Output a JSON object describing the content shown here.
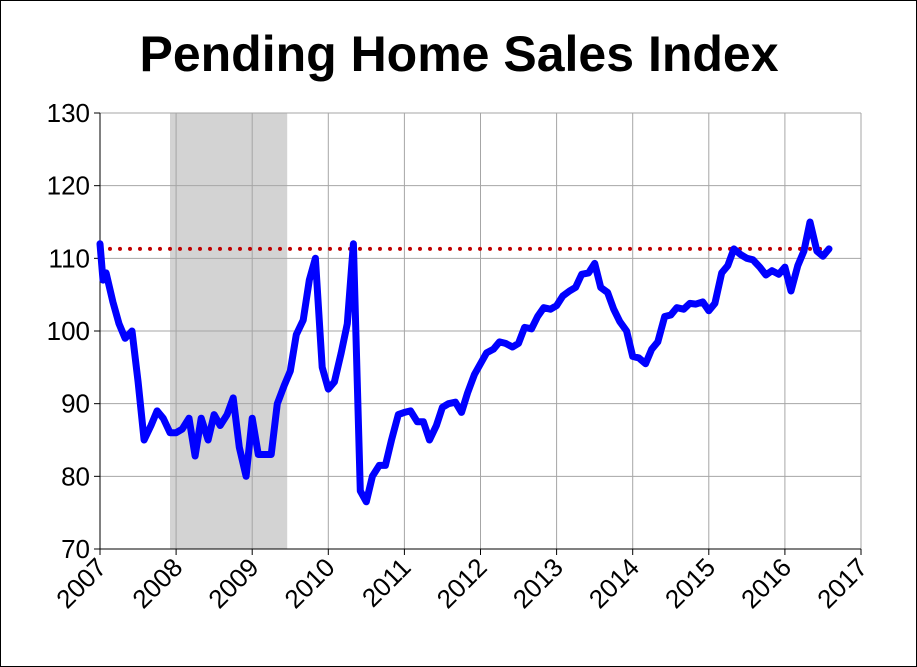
{
  "chart_data": {
    "type": "line",
    "title": "Pending Home Sales Index",
    "xlabel": "",
    "ylabel": "",
    "xlim": [
      2007,
      2017
    ],
    "ylim": [
      70,
      130
    ],
    "x_ticks": [
      2007,
      2008,
      2009,
      2010,
      2011,
      2012,
      2013,
      2014,
      2015,
      2016,
      2017
    ],
    "x_tick_labels": [
      "2007",
      "2008",
      "2009",
      "2010",
      "2011",
      "2012",
      "2013",
      "2014",
      "2015",
      "2016",
      "2017"
    ],
    "y_ticks": [
      70,
      80,
      90,
      100,
      110,
      120,
      130
    ],
    "y_tick_labels": [
      "70",
      "80",
      "90",
      "100",
      "110",
      "120",
      "130"
    ],
    "grid": true,
    "legend": "none",
    "shaded_period": {
      "start": 2007.92,
      "end": 2009.46,
      "color": "#d3d3d3"
    },
    "reference_line": {
      "value": 111.3,
      "color": "#c00000",
      "style": "dotted"
    },
    "series": [
      {
        "color": "#0000ff",
        "points": [
          [
            2007.0,
            112.0
          ],
          [
            2007.04,
            107.0
          ],
          [
            2007.08,
            108.0
          ],
          [
            2007.17,
            104.0
          ],
          [
            2007.25,
            101.0
          ],
          [
            2007.33,
            99.0
          ],
          [
            2007.42,
            100.0
          ],
          [
            2007.5,
            93.0
          ],
          [
            2007.58,
            85.0
          ],
          [
            2007.67,
            87.0
          ],
          [
            2007.75,
            89.0
          ],
          [
            2007.83,
            88.0
          ],
          [
            2007.92,
            86.0
          ],
          [
            2008.0,
            86.0
          ],
          [
            2008.08,
            86.5
          ],
          [
            2008.17,
            88.0
          ],
          [
            2008.25,
            82.8
          ],
          [
            2008.33,
            88.0
          ],
          [
            2008.42,
            85.0
          ],
          [
            2008.5,
            88.5
          ],
          [
            2008.58,
            87.0
          ],
          [
            2008.67,
            88.5
          ],
          [
            2008.75,
            90.8
          ],
          [
            2008.83,
            84.0
          ],
          [
            2008.92,
            80.0
          ],
          [
            2009.0,
            88.0
          ],
          [
            2009.08,
            83.0
          ],
          [
            2009.17,
            83.0
          ],
          [
            2009.25,
            83.0
          ],
          [
            2009.33,
            90.0
          ],
          [
            2009.42,
            92.5
          ],
          [
            2009.5,
            94.5
          ],
          [
            2009.58,
            99.5
          ],
          [
            2009.67,
            101.5
          ],
          [
            2009.75,
            107.0
          ],
          [
            2009.83,
            110.0
          ],
          [
            2009.92,
            95.0
          ],
          [
            2010.0,
            92.0
          ],
          [
            2010.08,
            93.0
          ],
          [
            2010.17,
            97.0
          ],
          [
            2010.25,
            101.0
          ],
          [
            2010.33,
            112.0
          ],
          [
            2010.42,
            78.0
          ],
          [
            2010.5,
            76.5
          ],
          [
            2010.58,
            80.0
          ],
          [
            2010.67,
            81.5
          ],
          [
            2010.75,
            81.5
          ],
          [
            2010.83,
            85.0
          ],
          [
            2010.92,
            88.5
          ],
          [
            2011.0,
            88.8
          ],
          [
            2011.08,
            89.0
          ],
          [
            2011.17,
            87.5
          ],
          [
            2011.25,
            87.5
          ],
          [
            2011.33,
            85.0
          ],
          [
            2011.42,
            87.0
          ],
          [
            2011.5,
            89.5
          ],
          [
            2011.58,
            90.0
          ],
          [
            2011.67,
            90.2
          ],
          [
            2011.75,
            88.8
          ],
          [
            2011.83,
            91.5
          ],
          [
            2011.92,
            94.0
          ],
          [
            2012.0,
            95.5
          ],
          [
            2012.08,
            97.0
          ],
          [
            2012.17,
            97.5
          ],
          [
            2012.25,
            98.5
          ],
          [
            2012.33,
            98.3
          ],
          [
            2012.42,
            97.8
          ],
          [
            2012.5,
            98.3
          ],
          [
            2012.58,
            100.5
          ],
          [
            2012.67,
            100.3
          ],
          [
            2012.75,
            102.0
          ],
          [
            2012.83,
            103.2
          ],
          [
            2012.92,
            103.0
          ],
          [
            2013.0,
            103.5
          ],
          [
            2013.08,
            104.8
          ],
          [
            2013.17,
            105.5
          ],
          [
            2013.25,
            106.0
          ],
          [
            2013.33,
            107.8
          ],
          [
            2013.42,
            108.0
          ],
          [
            2013.5,
            109.3
          ],
          [
            2013.58,
            106.0
          ],
          [
            2013.67,
            105.3
          ],
          [
            2013.75,
            103.0
          ],
          [
            2013.83,
            101.3
          ],
          [
            2013.92,
            100.0
          ],
          [
            2014.0,
            96.5
          ],
          [
            2014.08,
            96.3
          ],
          [
            2014.17,
            95.5
          ],
          [
            2014.25,
            97.5
          ],
          [
            2014.33,
            98.5
          ],
          [
            2014.42,
            102.0
          ],
          [
            2014.5,
            102.2
          ],
          [
            2014.58,
            103.2
          ],
          [
            2014.67,
            103.0
          ],
          [
            2014.75,
            103.8
          ],
          [
            2014.83,
            103.7
          ],
          [
            2014.92,
            104.0
          ],
          [
            2015.0,
            102.8
          ],
          [
            2015.08,
            103.8
          ],
          [
            2015.17,
            108.0
          ],
          [
            2015.25,
            109.0
          ],
          [
            2015.33,
            111.3
          ],
          [
            2015.42,
            110.5
          ],
          [
            2015.5,
            110.0
          ],
          [
            2015.58,
            109.8
          ],
          [
            2015.67,
            108.8
          ],
          [
            2015.75,
            107.7
          ],
          [
            2015.83,
            108.3
          ],
          [
            2015.92,
            107.8
          ],
          [
            2016.0,
            108.8
          ],
          [
            2016.08,
            105.5
          ],
          [
            2016.17,
            109.0
          ],
          [
            2016.25,
            111.0
          ],
          [
            2016.33,
            115.0
          ],
          [
            2016.42,
            111.0
          ],
          [
            2016.5,
            110.3
          ],
          [
            2016.58,
            111.3
          ]
        ]
      }
    ]
  }
}
